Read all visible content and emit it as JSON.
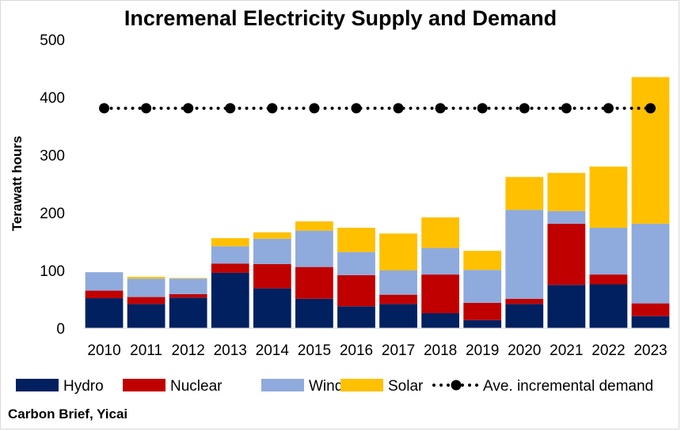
{
  "chart_data": {
    "type": "bar",
    "stacked": true,
    "title": "Incremenal Electricity Supply and Demand",
    "ylabel": "Terawatt hours",
    "xlabel": "",
    "ylim": [
      0,
      500
    ],
    "yticks": [
      0,
      100,
      200,
      300,
      400,
      500
    ],
    "grid": false,
    "legend_position": "bottom",
    "categories": [
      "2010",
      "2011",
      "2012",
      "2013",
      "2014",
      "2015",
      "2016",
      "2017",
      "2018",
      "2019",
      "2020",
      "2021",
      "2022",
      "2023"
    ],
    "series": [
      {
        "name": "Hydro",
        "color": "#002060",
        "values": [
          52,
          42,
          53,
          96,
          69,
          51,
          38,
          42,
          26,
          14,
          42,
          75,
          76,
          21
        ]
      },
      {
        "name": "Nuclear",
        "color": "#c00000",
        "values": [
          13,
          12,
          6,
          16,
          42,
          55,
          54,
          16,
          67,
          30,
          9,
          106,
          17,
          22
        ]
      },
      {
        "name": "Wind",
        "color": "#8faadc",
        "values": [
          32,
          32,
          27,
          30,
          44,
          63,
          40,
          42,
          46,
          57,
          154,
          22,
          81,
          138
        ]
      },
      {
        "name": "Solar",
        "color": "#ffc000",
        "values": [
          0,
          3,
          1,
          14,
          11,
          16,
          42,
          64,
          53,
          33,
          57,
          66,
          106,
          254
        ]
      }
    ],
    "line_series": {
      "name": "Ave. incremental demand",
      "color": "#000000",
      "style": "dotted-with-markers",
      "values": [
        381,
        381,
        381,
        381,
        381,
        381,
        381,
        381,
        381,
        381,
        381,
        381,
        381,
        381
      ]
    }
  },
  "source": "Carbon Brief, Yicai"
}
